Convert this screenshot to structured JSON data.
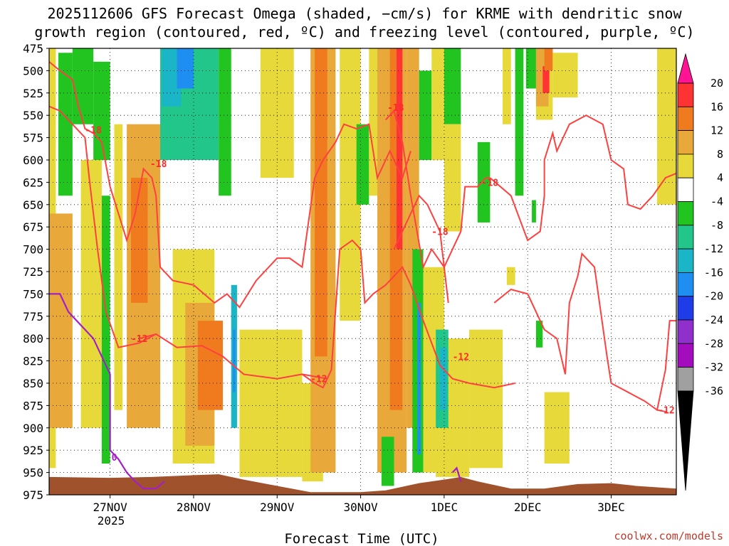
{
  "chart_data": {
    "type": "heatmap",
    "title_lines": [
      "2025112606 GFS Forecast Omega (shaded, −cm/s) for KRME with dendritic snow",
      "growth region (contoured, red, ºC) and freezing level (contoured, purple, ºC)"
    ],
    "xlabel": "Forecast Time (UTC)",
    "x_ticks": [
      "27NOV",
      "28NOV",
      "29NOV",
      "30NOV",
      "1DEC",
      "2DEC",
      "3DEC"
    ],
    "x_year_label": "2025",
    "x_range_days": [
      -0.73,
      6.78
    ],
    "y_ticks": [
      475,
      500,
      525,
      550,
      575,
      600,
      625,
      650,
      675,
      700,
      725,
      750,
      775,
      800,
      825,
      850,
      875,
      900,
      925,
      950,
      975
    ],
    "ylim": [
      475,
      975
    ],
    "y_units": "hPa",
    "grid": true,
    "colorbar": {
      "labels": [
        "20",
        "16",
        "12",
        "8",
        "4",
        "-4",
        "-8",
        "-12",
        "-16",
        "-20",
        "-24",
        "-28",
        "-32",
        "-36"
      ],
      "colors": [
        "#ff1493",
        "#ff3333",
        "#f07a1e",
        "#e8a93a",
        "#e8d93a",
        "#ffffff",
        "#22c520",
        "#22c58a",
        "#1ab6c8",
        "#1e8ff0",
        "#1e3ce8",
        "#8f2fcc",
        "#a30dbd",
        "#a0a0a0",
        "#000000"
      ]
    },
    "omega_cells": [
      {
        "t0": -0.73,
        "t1": -0.65,
        "p0": 475,
        "p1": 945,
        "v": 6
      },
      {
        "t0": -0.73,
        "t1": -0.45,
        "p0": 660,
        "p1": 900,
        "v": 9
      },
      {
        "t0": -0.62,
        "t1": -0.45,
        "p0": 480,
        "p1": 640,
        "v": -7
      },
      {
        "t0": -0.45,
        "t1": -0.2,
        "p0": 475,
        "p1": 560,
        "v": -8
      },
      {
        "t0": -0.35,
        "t1": -0.1,
        "p0": 600,
        "p1": 900,
        "v": 5
      },
      {
        "t0": -0.2,
        "t1": 0.0,
        "p0": 490,
        "p1": 600,
        "v": -7
      },
      {
        "t0": -0.1,
        "t1": 0.0,
        "p0": 640,
        "p1": 940,
        "v": -6
      },
      {
        "t0": 0.05,
        "t1": 0.15,
        "p0": 560,
        "p1": 880,
        "v": 6
      },
      {
        "t0": 0.2,
        "t1": 0.6,
        "p0": 560,
        "p1": 900,
        "v": 9
      },
      {
        "t0": 0.25,
        "t1": 0.45,
        "p0": 620,
        "p1": 760,
        "v": 13
      },
      {
        "t0": 0.6,
        "t1": 1.3,
        "p0": 475,
        "p1": 600,
        "v": -10
      },
      {
        "t0": 0.62,
        "t1": 0.85,
        "p0": 475,
        "p1": 540,
        "v": -14
      },
      {
        "t0": 0.8,
        "t1": 1.0,
        "p0": 475,
        "p1": 520,
        "v": -17
      },
      {
        "t0": 0.75,
        "t1": 1.25,
        "p0": 700,
        "p1": 940,
        "v": 6
      },
      {
        "t0": 0.9,
        "t1": 1.25,
        "p0": 760,
        "p1": 920,
        "v": 9
      },
      {
        "t0": 1.05,
        "t1": 1.35,
        "p0": 780,
        "p1": 880,
        "v": 13
      },
      {
        "t0": 1.3,
        "t1": 1.45,
        "p0": 475,
        "p1": 640,
        "v": -7
      },
      {
        "t0": 1.45,
        "t1": 1.52,
        "p0": 740,
        "p1": 900,
        "v": -14
      },
      {
        "t0": 1.47,
        "t1": 1.5,
        "p0": 790,
        "p1": 860,
        "v": -18
      },
      {
        "t0": 1.55,
        "t1": 2.3,
        "p0": 790,
        "p1": 955,
        "v": 6
      },
      {
        "t0": 2.3,
        "t1": 2.55,
        "p0": 850,
        "p1": 960,
        "v": 6
      },
      {
        "t0": 1.8,
        "t1": 2.2,
        "p0": 475,
        "p1": 620,
        "v": 5
      },
      {
        "t0": 2.4,
        "t1": 2.7,
        "p0": 475,
        "p1": 950,
        "v": 9
      },
      {
        "t0": 2.45,
        "t1": 2.6,
        "p0": 475,
        "p1": 820,
        "v": 13
      },
      {
        "t0": 2.75,
        "t1": 3.0,
        "p0": 475,
        "p1": 780,
        "v": 6
      },
      {
        "t0": 2.95,
        "t1": 3.1,
        "p0": 560,
        "p1": 650,
        "v": -8
      },
      {
        "t0": 3.1,
        "t1": 3.2,
        "p0": 475,
        "p1": 640,
        "v": 5
      },
      {
        "t0": 3.2,
        "t1": 3.55,
        "p0": 475,
        "p1": 950,
        "v": 9
      },
      {
        "t0": 3.35,
        "t1": 3.5,
        "p0": 475,
        "p1": 880,
        "v": 14
      },
      {
        "t0": 3.43,
        "t1": 3.5,
        "p0": 475,
        "p1": 700,
        "v": 19
      },
      {
        "t0": 3.55,
        "t1": 3.7,
        "p0": 475,
        "p1": 900,
        "v": 10
      },
      {
        "t0": 3.25,
        "t1": 3.4,
        "p0": 910,
        "p1": 965,
        "v": -8
      },
      {
        "t0": 3.62,
        "t1": 3.75,
        "p0": 700,
        "p1": 950,
        "v": -7
      },
      {
        "t0": 3.68,
        "t1": 3.72,
        "p0": 760,
        "p1": 930,
        "v": -20
      },
      {
        "t0": 3.75,
        "t1": 4.0,
        "p0": 720,
        "p1": 950,
        "v": 5
      },
      {
        "t0": 3.9,
        "t1": 4.3,
        "p0": 800,
        "p1": 955,
        "v": 6
      },
      {
        "t0": 3.9,
        "t1": 4.05,
        "p0": 790,
        "p1": 900,
        "v": -9
      },
      {
        "t0": 3.95,
        "t1": 4.03,
        "p0": 810,
        "p1": 880,
        "v": -14
      },
      {
        "t0": 3.7,
        "t1": 3.85,
        "p0": 500,
        "p1": 600,
        "v": -8
      },
      {
        "t0": 3.85,
        "t1": 4.0,
        "p0": 475,
        "p1": 600,
        "v": 6
      },
      {
        "t0": 4.0,
        "t1": 4.2,
        "p0": 475,
        "p1": 560,
        "v": -8
      },
      {
        "t0": 4.0,
        "t1": 4.2,
        "p0": 560,
        "p1": 680,
        "v": 5
      },
      {
        "t0": 4.3,
        "t1": 4.7,
        "p0": 790,
        "p1": 945,
        "v": 6
      },
      {
        "t0": 4.4,
        "t1": 4.55,
        "p0": 580,
        "p1": 670,
        "v": -8
      },
      {
        "t0": 4.7,
        "t1": 4.8,
        "p0": 475,
        "p1": 560,
        "v": 4.5
      },
      {
        "t0": 4.75,
        "t1": 4.85,
        "p0": 720,
        "p1": 740,
        "v": 5
      },
      {
        "t0": 4.85,
        "t1": 4.95,
        "p0": 475,
        "p1": 640,
        "v": -8
      },
      {
        "t0": 5.1,
        "t1": 5.3,
        "p0": 475,
        "p1": 555,
        "v": 6
      },
      {
        "t0": 5.1,
        "t1": 5.25,
        "p0": 475,
        "p1": 540,
        "v": 9
      },
      {
        "t0": 5.18,
        "t1": 5.26,
        "p0": 495,
        "p1": 525,
        "v": 19
      },
      {
        "t0": 5.2,
        "t1": 5.3,
        "p0": 475,
        "p1": 500,
        "v": 14
      },
      {
        "t0": 5.3,
        "t1": 5.6,
        "p0": 480,
        "p1": 530,
        "v": 5
      },
      {
        "t0": 4.98,
        "t1": 5.1,
        "p0": 475,
        "p1": 520,
        "v": -8
      },
      {
        "t0": 5.05,
        "t1": 5.1,
        "p0": 645,
        "p1": 670,
        "v": -8
      },
      {
        "t0": 5.1,
        "t1": 5.18,
        "p0": 780,
        "p1": 810,
        "v": -8
      },
      {
        "t0": 5.2,
        "t1": 5.5,
        "p0": 860,
        "p1": 940,
        "v": 5
      },
      {
        "t0": 6.55,
        "t1": 6.78,
        "p0": 475,
        "p1": 650,
        "v": 5
      }
    ],
    "dgz_contours": [
      {
        "label": "-18",
        "label_pos": [
          -0.2,
          566
        ],
        "points": [
          [
            -0.73,
            490
          ],
          [
            -0.6,
            500
          ],
          [
            -0.45,
            510
          ],
          [
            -0.38,
            540
          ],
          [
            -0.3,
            565
          ],
          [
            -0.2,
            570
          ],
          [
            -0.1,
            580
          ],
          [
            0.0,
            630
          ],
          [
            0.1,
            660
          ],
          [
            0.2,
            690
          ],
          [
            0.3,
            660
          ],
          [
            0.4,
            610
          ],
          [
            0.5,
            620
          ],
          [
            0.55,
            640
          ],
          [
            0.6,
            720
          ],
          [
            0.75,
            735
          ],
          [
            1.0,
            740
          ],
          [
            1.25,
            760
          ],
          [
            1.4,
            750
          ],
          [
            1.55,
            765
          ],
          [
            1.75,
            735
          ],
          [
            2.0,
            710
          ],
          [
            2.15,
            710
          ],
          [
            2.3,
            720
          ],
          [
            2.45,
            620
          ],
          [
            2.55,
            600
          ],
          [
            2.7,
            580
          ],
          [
            2.8,
            560
          ],
          [
            2.95,
            565
          ],
          [
            3.1,
            560
          ],
          [
            3.2,
            620
          ],
          [
            3.35,
            590
          ],
          [
            3.5,
            620
          ],
          [
            3.6,
            590
          ]
        ]
      },
      {
        "label": "-18",
        "label_pos": [
          0.58,
          604
        ],
        "points": [
          [
            -0.73,
            540
          ],
          [
            -0.6,
            545
          ],
          [
            -0.45,
            560
          ],
          [
            -0.3,
            575
          ],
          [
            -0.25,
            620
          ],
          [
            -0.15,
            700
          ],
          [
            -0.05,
            770
          ],
          [
            0.1,
            810
          ],
          [
            0.35,
            805
          ],
          [
            0.55,
            795
          ],
          [
            0.8,
            810
          ],
          [
            1.1,
            808
          ],
          [
            1.35,
            820
          ],
          [
            1.6,
            840
          ],
          [
            2.0,
            845
          ],
          [
            2.3,
            840
          ],
          [
            2.6,
            845
          ]
        ]
      },
      {
        "label": "-18",
        "label_pos": [
          3.42,
          541
        ],
        "points": [
          [
            3.3,
            555
          ],
          [
            3.4,
            545
          ],
          [
            3.5,
            580
          ],
          [
            3.6,
            640
          ],
          [
            3.75,
            720
          ],
          [
            3.85,
            700
          ],
          [
            4.0,
            720
          ],
          [
            4.2,
            680
          ],
          [
            4.25,
            630
          ],
          [
            4.4,
            630
          ],
          [
            4.5,
            620
          ],
          [
            4.55,
            620
          ]
        ]
      },
      {
        "label": "-18",
        "label_pos": [
          3.95,
          680
        ],
        "points": [
          [
            3.4,
            700
          ],
          [
            3.5,
            680
          ],
          [
            3.6,
            660
          ],
          [
            3.7,
            640
          ],
          [
            3.8,
            650
          ],
          [
            3.95,
            680
          ],
          [
            4.0,
            720
          ],
          [
            4.05,
            760
          ]
        ]
      },
      {
        "label": "-18",
        "label_pos": [
          4.55,
          625
        ],
        "points": [
          [
            4.55,
            620
          ],
          [
            4.8,
            640
          ],
          [
            5.0,
            690
          ],
          [
            5.15,
            680
          ],
          [
            5.2,
            640
          ],
          [
            5.2,
            600
          ],
          [
            5.3,
            570
          ],
          [
            5.35,
            590
          ],
          [
            5.5,
            560
          ],
          [
            5.7,
            550
          ],
          [
            5.9,
            560
          ],
          [
            6.0,
            600
          ],
          [
            6.15,
            610
          ],
          [
            6.2,
            650
          ],
          [
            6.35,
            655
          ],
          [
            6.5,
            640
          ],
          [
            6.65,
            620
          ],
          [
            6.78,
            615
          ]
        ]
      },
      {
        "label": "-12",
        "label_pos": [
          0.35,
          800
        ],
        "points": [
          [
            0.35,
            800
          ],
          [
            0.55,
            795
          ]
        ]
      },
      {
        "label": "-12",
        "label_pos": [
          2.5,
          845
        ],
        "points": [
          [
            2.3,
            840
          ],
          [
            2.45,
            850
          ],
          [
            2.55,
            855
          ],
          [
            2.65,
            835
          ],
          [
            2.75,
            700
          ],
          [
            2.9,
            690
          ],
          [
            3.0,
            700
          ],
          [
            3.05,
            760
          ],
          [
            3.15,
            750
          ],
          [
            3.3,
            740
          ],
          [
            3.5,
            720
          ],
          [
            3.6,
            740
          ],
          [
            3.75,
            780
          ],
          [
            3.95,
            830
          ],
          [
            4.1,
            845
          ],
          [
            4.3,
            850
          ],
          [
            4.6,
            855
          ],
          [
            4.85,
            850
          ]
        ]
      },
      {
        "label": "-12",
        "label_pos": [
          4.2,
          820
        ],
        "points": [
          [
            4.6,
            760
          ],
          [
            4.8,
            745
          ],
          [
            5.0,
            750
          ],
          [
            5.2,
            790
          ],
          [
            5.35,
            800
          ],
          [
            5.45,
            840
          ],
          [
            5.5,
            760
          ],
          [
            5.6,
            730
          ],
          [
            5.65,
            705
          ],
          [
            5.8,
            720
          ],
          [
            5.95,
            820
          ],
          [
            6.0,
            850
          ],
          [
            6.2,
            860
          ],
          [
            6.4,
            870
          ],
          [
            6.55,
            880
          ],
          [
            6.65,
            835
          ],
          [
            6.7,
            780
          ],
          [
            6.78,
            780
          ]
        ]
      },
      {
        "label": "-12",
        "label_pos": [
          6.66,
          880
        ],
        "points": [
          [
            6.55,
            880
          ],
          [
            6.66,
            882
          ]
        ]
      }
    ],
    "freezing_contour": {
      "label": "0",
      "label_pos": [
        0.05,
        933
      ],
      "points": [
        [
          -0.73,
          750
        ],
        [
          -0.6,
          750
        ],
        [
          -0.5,
          770
        ],
        [
          -0.4,
          780
        ],
        [
          -0.3,
          790
        ],
        [
          -0.2,
          800
        ],
        [
          -0.1,
          820
        ],
        [
          0.0,
          840
        ],
        [
          0.0,
          870
        ],
        [
          0.0,
          925
        ],
        [
          0.1,
          935
        ],
        [
          0.2,
          950
        ],
        [
          0.3,
          960
        ],
        [
          0.4,
          968
        ],
        [
          0.55,
          968
        ],
        [
          0.65,
          960
        ]
      ]
    },
    "freezing_bump": {
      "points": [
        [
          4.1,
          950
        ],
        [
          4.15,
          945
        ],
        [
          4.2,
          960
        ]
      ]
    },
    "terrain": {
      "color": "#a0522d",
      "points": [
        [
          -0.73,
          955
        ],
        [
          0.0,
          956
        ],
        [
          0.5,
          955
        ],
        [
          1.0,
          953
        ],
        [
          1.3,
          952
        ],
        [
          1.6,
          958
        ],
        [
          2.0,
          965
        ],
        [
          2.4,
          972
        ],
        [
          3.0,
          972
        ],
        [
          3.3,
          970
        ],
        [
          3.7,
          962
        ],
        [
          4.0,
          958
        ],
        [
          4.2,
          955
        ],
        [
          4.4,
          960
        ],
        [
          4.8,
          968
        ],
        [
          5.2,
          968
        ],
        [
          5.6,
          963
        ],
        [
          6.0,
          962
        ],
        [
          6.3,
          965
        ],
        [
          6.78,
          968
        ]
      ]
    },
    "credit": "coolwx.com/models"
  }
}
